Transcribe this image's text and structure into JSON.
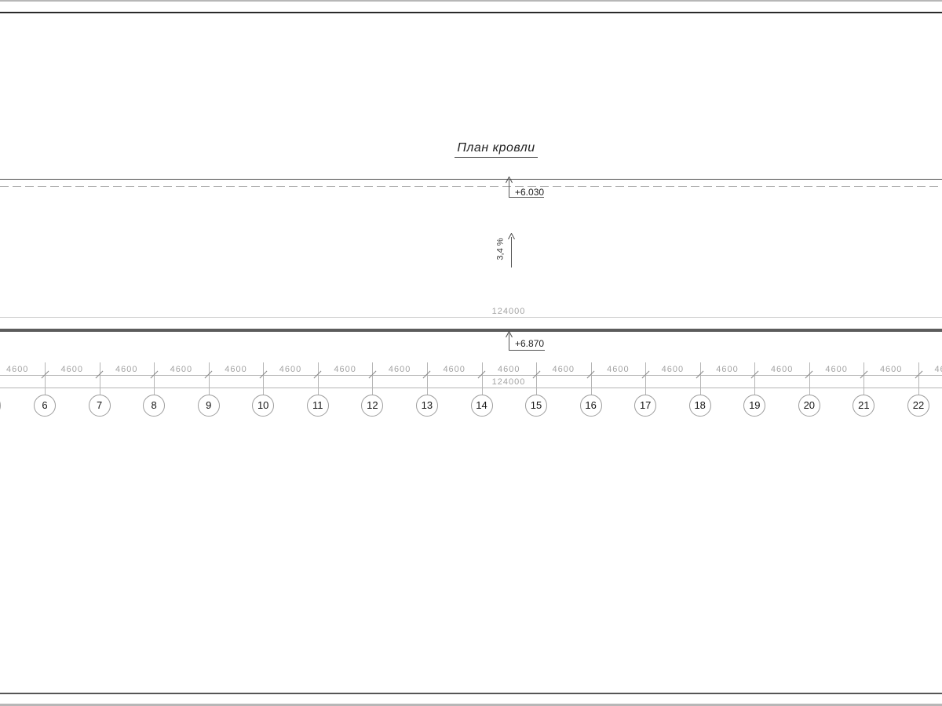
{
  "drawing": {
    "title": "План кровли",
    "slope_label": "3,4 %",
    "upper_elevation": "+6.030",
    "lower_elevation": "+6.870",
    "overall_dimension_top": "124000",
    "overall_dimension_bottom": "124000"
  },
  "grid": {
    "bay_label": "4600",
    "axis_numbers": [
      "6",
      "7",
      "8",
      "9",
      "10",
      "11",
      "12",
      "13",
      "14",
      "15",
      "16",
      "17",
      "18",
      "19",
      "20",
      "21",
      "22"
    ]
  },
  "colors": {
    "dark_wall_line": "#2a2a2a",
    "roof_edge_line": "#4d4d4d",
    "thick_parapet_line": "#5c5c5c",
    "light_dim_line": "#b5b5b5",
    "dashed_roof_line": "#9a9a9a",
    "dim_text": "#a3a3a3",
    "axis_number_text": "#161616",
    "marker_line": "#555555",
    "page_edge_strip": "#b7b7b7"
  }
}
